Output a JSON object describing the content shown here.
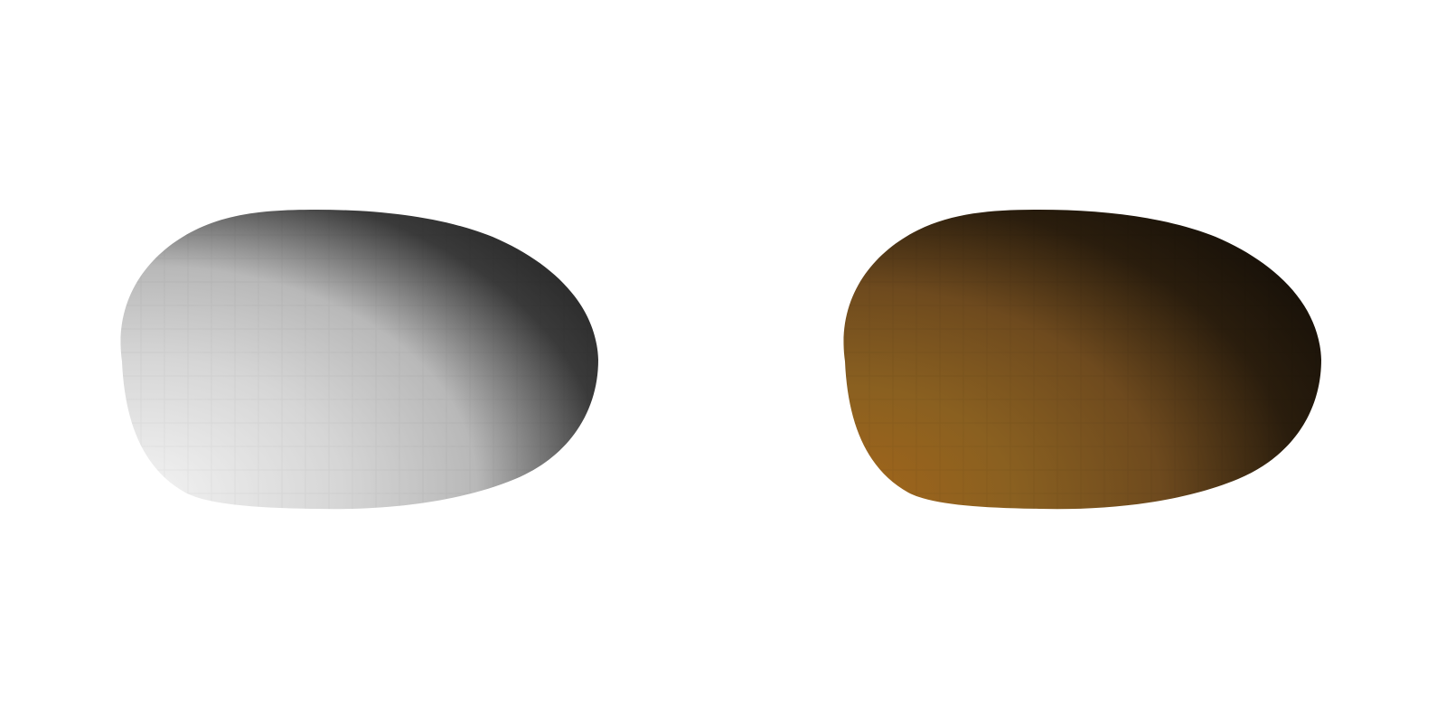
{
  "scene": {
    "background_color": "#ffffff",
    "objects": [
      {
        "name": "grayscale-shaded-ellipsoid",
        "shading": "grayscale",
        "colors": {
          "highlight": "#f4f4f4",
          "mid": "#b8b8b8",
          "shadow": "#1c1c1c"
        }
      },
      {
        "name": "amber-shaded-ellipsoid",
        "shading": "color",
        "colors": {
          "highlight": "#a4661a",
          "mid": "#6e4a1e",
          "shadow": "#120d07"
        }
      }
    ]
  }
}
